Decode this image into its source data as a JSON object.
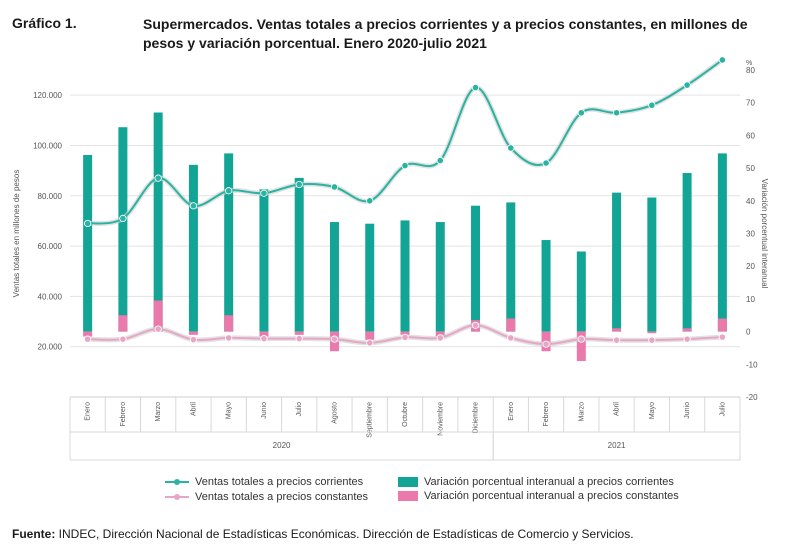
{
  "figure_label": "Gráfico 1.",
  "title": "Supermercados. Ventas totales a precios corrientes y a precios constantes, en millones de pesos y variación porcentual. Enero 2020-julio 2021",
  "source_prefix": "Fuente:",
  "source_text": " INDEC, Dirección Nacional de Estadísticas Económicas. Dirección de Estadísticas de Comercio y Servicios.",
  "colors": {
    "current_line": "#2ab3a3",
    "constant_line": "#e8a6c6",
    "current_bar": "#12a595",
    "constant_bar": "#e97aab",
    "grid": "#e3e3e3",
    "axis_text": "#555555"
  },
  "chart_data": {
    "type": "bar",
    "categories": [
      "Enero",
      "Febrero",
      "Marzo",
      "Abril",
      "Mayo",
      "Junio",
      "Julio",
      "Agosto",
      "Septiembre",
      "Octubre",
      "Noviembre",
      "Diciembre",
      "Enero",
      "Febrero",
      "Marzo",
      "Abril",
      "Mayo",
      "Junio",
      "Julio"
    ],
    "year_groups": [
      {
        "label": "2020",
        "from": 0,
        "to": 11
      },
      {
        "label": "2021",
        "from": 12,
        "to": 18
      }
    ],
    "ylabel": "Ventas totales en millones de pesos",
    "y2label": "Variación porcentual interanual",
    "y2unit": "%",
    "ylim": [
      0,
      130000
    ],
    "yticks": [
      20000,
      40000,
      60000,
      80000,
      100000,
      120000
    ],
    "ytick_labels": [
      "20.000",
      "40.000",
      "60.000",
      "80.000",
      "100.000",
      "120.000"
    ],
    "y2lim": [
      -20,
      80
    ],
    "y2ticks": [
      -20,
      -10,
      0,
      10,
      20,
      30,
      40,
      50,
      60,
      70,
      80
    ],
    "grid": true,
    "legend_position": "bottom",
    "series": [
      {
        "name": "Ventas totales a precios corrientes",
        "kind": "line",
        "axis": "left",
        "values": [
          69000,
          71000,
          87000,
          76000,
          82000,
          81000,
          84500,
          83500,
          78000,
          92000,
          94000,
          123000,
          99000,
          93000,
          113000,
          113000,
          116000,
          124000,
          134000
        ]
      },
      {
        "name": "Ventas totales a precios constantes",
        "kind": "line",
        "axis": "left",
        "values": [
          23000,
          23000,
          27000,
          22800,
          23500,
          23200,
          23200,
          23000,
          21500,
          23700,
          23500,
          28500,
          23500,
          21000,
          23000,
          22600,
          22600,
          23000,
          23800
        ]
      },
      {
        "name": "Variación porcentual interanual a precios corrientes",
        "kind": "bar",
        "axis": "right",
        "values": [
          54,
          62.5,
          67,
          51,
          54.5,
          43.5,
          47,
          33.5,
          33,
          34,
          33.5,
          38.5,
          39.5,
          28,
          24.5,
          42.5,
          41,
          48.5,
          54.5
        ]
      },
      {
        "name": "Variación porcentual interanual a precios constantes",
        "kind": "bar",
        "axis": "right",
        "values": [
          -1.5,
          5,
          9.5,
          -1,
          5,
          -1.5,
          -1,
          -6,
          -2.5,
          -1,
          -1.5,
          3.5,
          4,
          -6,
          -9,
          1,
          -0.5,
          1,
          4
        ]
      }
    ]
  }
}
